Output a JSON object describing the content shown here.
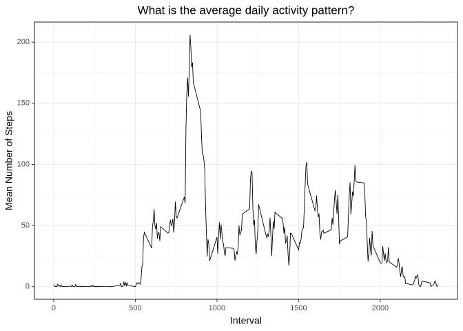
{
  "chart_data": {
    "type": "line",
    "title": "What is the average daily activity pattern?",
    "x_label": "Interval",
    "y_label": "Mean Number of Steps",
    "color": "#000000",
    "grid": true,
    "xlim": [
      -117.75,
      2472.75
    ],
    "ylim": [
      -10.31,
      216.48
    ],
    "xticks": [
      0,
      500,
      1000,
      1500,
      2000
    ],
    "yticks": [
      0,
      50,
      100,
      150,
      200
    ],
    "x_minor_ticks": [
      250,
      750,
      1250,
      1750,
      2250
    ],
    "y_minor_ticks": [
      25,
      75,
      125,
      175
    ],
    "x": [
      0,
      5,
      10,
      15,
      20,
      25,
      30,
      35,
      40,
      45,
      50,
      55,
      100,
      105,
      110,
      115,
      120,
      125,
      130,
      135,
      140,
      145,
      150,
      155,
      200,
      205,
      210,
      215,
      220,
      225,
      230,
      235,
      240,
      245,
      250,
      255,
      300,
      305,
      310,
      315,
      320,
      325,
      330,
      335,
      340,
      345,
      350,
      355,
      400,
      405,
      410,
      415,
      420,
      425,
      430,
      435,
      440,
      445,
      450,
      455,
      500,
      505,
      510,
      515,
      520,
      525,
      530,
      535,
      540,
      545,
      550,
      555,
      600,
      605,
      610,
      615,
      620,
      625,
      630,
      635,
      640,
      645,
      650,
      655,
      700,
      705,
      710,
      715,
      720,
      725,
      730,
      735,
      740,
      745,
      750,
      755,
      800,
      805,
      810,
      815,
      820,
      825,
      830,
      835,
      840,
      845,
      850,
      855,
      900,
      905,
      910,
      915,
      920,
      925,
      930,
      935,
      940,
      945,
      950,
      955,
      1000,
      1005,
      1010,
      1015,
      1020,
      1025,
      1030,
      1035,
      1040,
      1045,
      1050,
      1055,
      1100,
      1105,
      1110,
      1115,
      1120,
      1125,
      1130,
      1135,
      1140,
      1145,
      1150,
      1155,
      1200,
      1205,
      1210,
      1215,
      1220,
      1225,
      1230,
      1235,
      1240,
      1245,
      1250,
      1255,
      1300,
      1305,
      1310,
      1315,
      1320,
      1325,
      1330,
      1335,
      1340,
      1345,
      1350,
      1355,
      1400,
      1405,
      1410,
      1415,
      1420,
      1425,
      1430,
      1435,
      1440,
      1445,
      1450,
      1455,
      1500,
      1505,
      1510,
      1515,
      1520,
      1525,
      1530,
      1535,
      1540,
      1545,
      1550,
      1555,
      1600,
      1605,
      1610,
      1615,
      1620,
      1625,
      1630,
      1635,
      1640,
      1645,
      1650,
      1655,
      1700,
      1705,
      1710,
      1715,
      1720,
      1725,
      1730,
      1735,
      1740,
      1745,
      1750,
      1755,
      1800,
      1805,
      1810,
      1815,
      1820,
      1825,
      1830,
      1835,
      1840,
      1845,
      1850,
      1855,
      1900,
      1905,
      1910,
      1915,
      1920,
      1925,
      1930,
      1935,
      1940,
      1945,
      1950,
      1955,
      2000,
      2005,
      2010,
      2015,
      2020,
      2025,
      2030,
      2035,
      2040,
      2045,
      2050,
      2055,
      2100,
      2105,
      2110,
      2115,
      2120,
      2125,
      2130,
      2135,
      2140,
      2145,
      2150,
      2155,
      2200,
      2205,
      2210,
      2215,
      2220,
      2225,
      2230,
      2235,
      2240,
      2245,
      2250,
      2255,
      2300,
      2305,
      2310,
      2315,
      2320,
      2325,
      2330,
      2335,
      2340,
      2345,
      2350,
      2355
    ],
    "values": [
      1.72,
      0.34,
      0.13,
      0.15,
      0.08,
      2.09,
      0.53,
      0.87,
      0,
      1.47,
      0.3,
      0.13,
      0.32,
      0.68,
      0,
      1.11,
      0.02,
      0,
      0,
      1.83,
      0.17,
      0.38,
      0,
      0.26,
      0,
      0,
      0,
      0,
      0.08,
      0,
      0.87,
      0,
      1.13,
      0,
      0,
      0.13,
      0,
      0.38,
      0,
      0,
      0.45,
      0,
      0,
      0,
      0,
      0.23,
      0,
      0,
      1.19,
      0.94,
      2.57,
      0,
      0.34,
      0.36,
      4.11,
      0.66,
      3.49,
      0.83,
      3.11,
      1.11,
      0,
      1.57,
      3,
      2.25,
      3.32,
      2.96,
      2.09,
      6.06,
      16.02,
      18.34,
      39.45,
      44.49,
      31.49,
      49.26,
      53.77,
      63.45,
      49.96,
      47.08,
      52.15,
      39.34,
      44.02,
      44.17,
      37.36,
      49.04,
      43.81,
      44.38,
      50.51,
      54.51,
      49.92,
      50.98,
      55.68,
      44.32,
      52.26,
      69.55,
      57.85,
      56.15,
      73.38,
      68.21,
      129.43,
      157.53,
      171.15,
      155.4,
      177.3,
      206.17,
      195.92,
      179.57,
      183.4,
      167.02,
      143.45,
      124.04,
      109.11,
      108.11,
      103.72,
      95.97,
      66.21,
      45.23,
      24.79,
      38.75,
      34.98,
      21.06,
      40.57,
      26.98,
      42.42,
      52.66,
      38.92,
      50.79,
      44.28,
      37.42,
      34.7,
      28.34,
      25.09,
      31.94,
      31.36,
      29.68,
      21.32,
      25.55,
      28.38,
      26.47,
      33.43,
      49.98,
      42.04,
      44.6,
      46.04,
      59.19,
      63.87,
      87.7,
      94.85,
      92.77,
      63.4,
      50.17,
      54.47,
      32.42,
      26.53,
      37.74,
      45.06,
      67.28,
      42.34,
      39.88,
      43.26,
      40.98,
      46.25,
      56.43,
      42.75,
      25.13,
      39.96,
      53.55,
      47.32,
      60.81,
      55.75,
      51.96,
      43.58,
      48.7,
      35.47,
      37.55,
      41.85,
      27.51,
      17.11,
      26.08,
      43.62,
      43.77,
      30.02,
      36.08,
      35.49,
      38.85,
      45.96,
      47.75,
      48.13,
      65.32,
      82.91,
      98.66,
      102.11,
      83.96,
      62.13,
      64.13,
      74.55,
      63.17,
      56.91,
      59.77,
      43.87,
      38.57,
      44.66,
      45.45,
      46.21,
      43.68,
      46.62,
      56.3,
      50.72,
      61.23,
      72.72,
      78.94,
      68.94,
      59.66,
      75.09,
      56.51,
      34.77,
      37.45,
      40.68,
      58.02,
      74.7,
      85.32,
      59.26,
      67.77,
      77.7,
      74.25,
      85.34,
      99.45,
      86.58,
      85.6,
      84.87,
      77.83,
      58.04,
      53.36,
      36.32,
      20.72,
      27.4,
      40.02,
      30.21,
      25.55,
      45.66,
      33.53,
      19.62,
      19.02,
      19.34,
      33.34,
      26.81,
      21.17,
      27.3,
      21.34,
      19.55,
      21.32,
      32.3,
      20.15,
      15.94,
      17.23,
      23.45,
      19.25,
      12.45,
      8.02,
      14.66,
      16.3,
      8.68,
      7.79,
      8.13,
      2.62,
      1.45,
      3.68,
      4.81,
      8.51,
      7.08,
      8.7,
      9.75,
      2.21,
      0.32,
      0.11,
      1.6,
      4.6,
      3.3,
      2.85,
      0,
      0.83,
      0.96,
      1.58,
      2.6,
      4.7,
      3.3,
      0.64,
      0.23,
      1.08
    ]
  }
}
